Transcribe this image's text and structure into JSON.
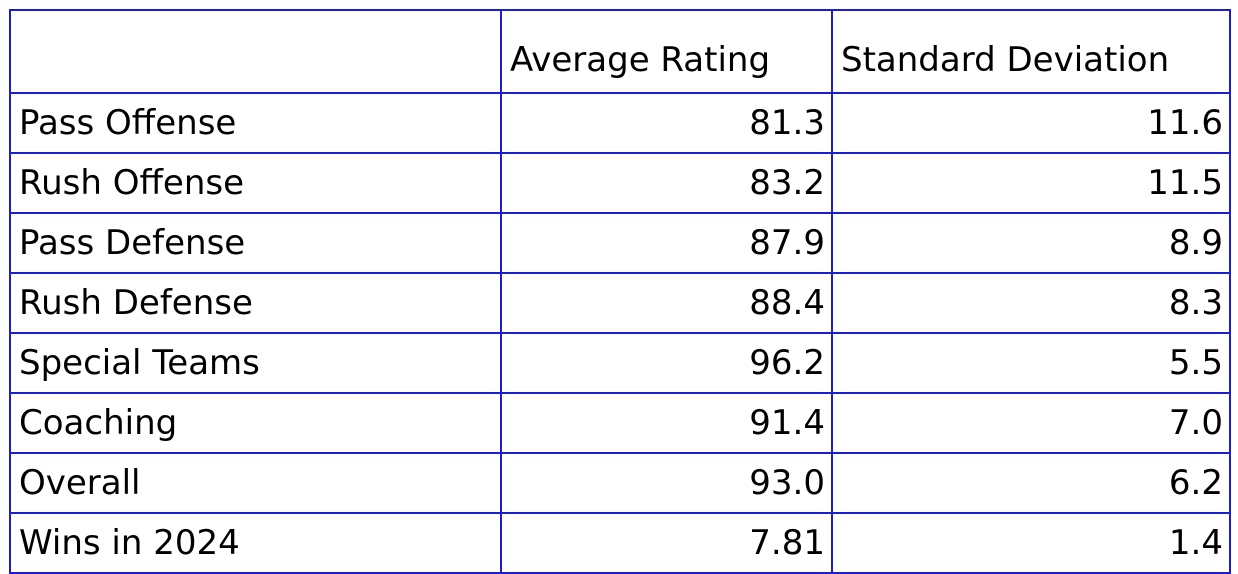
{
  "table": {
    "header": [
      "Average Rating",
      "Standard Deviation"
    ],
    "rows": [
      [
        "Pass Offense",
        "81.3",
        "11.6"
      ],
      [
        "Rush Offense",
        "83.2",
        "11.5"
      ],
      [
        "Pass Defense",
        "87.9",
        "8.9"
      ],
      [
        "Rush Defense",
        "88.4",
        "8.3"
      ],
      [
        "Special Teams",
        "96.2",
        "5.5"
      ],
      [
        "Coaching",
        "91.4",
        "7.0"
      ],
      [
        "Overall",
        "93.0",
        "6.2"
      ],
      [
        "Wins in 2024",
        "7.81",
        "1.4"
      ]
    ]
  }
}
